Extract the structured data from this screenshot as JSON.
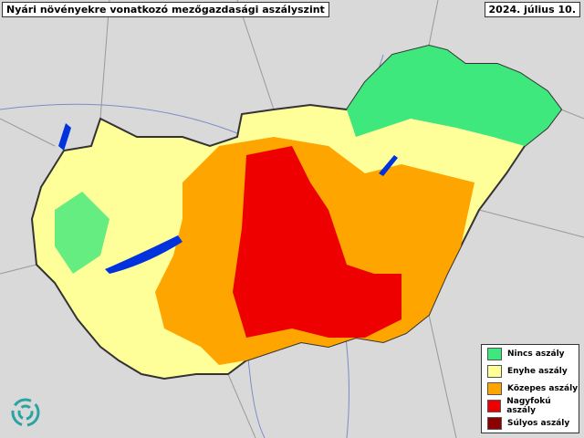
{
  "title": "Nyári növényekre vonatkozó mezőgazdasági aszályszint",
  "date": "2024. július 10.",
  "legend": [
    {
      "label": "Nincs aszály",
      "color": "#3ee87c"
    },
    {
      "label": "Enyhe aszály",
      "color": "#ffff99"
    },
    {
      "label": "Közepes aszály",
      "color": "#ffa500"
    },
    {
      "label": "Nagyfokú aszály",
      "color": "#ee0000"
    },
    {
      "label": "Súlyos aszály",
      "color": "#8b0000"
    }
  ]
}
